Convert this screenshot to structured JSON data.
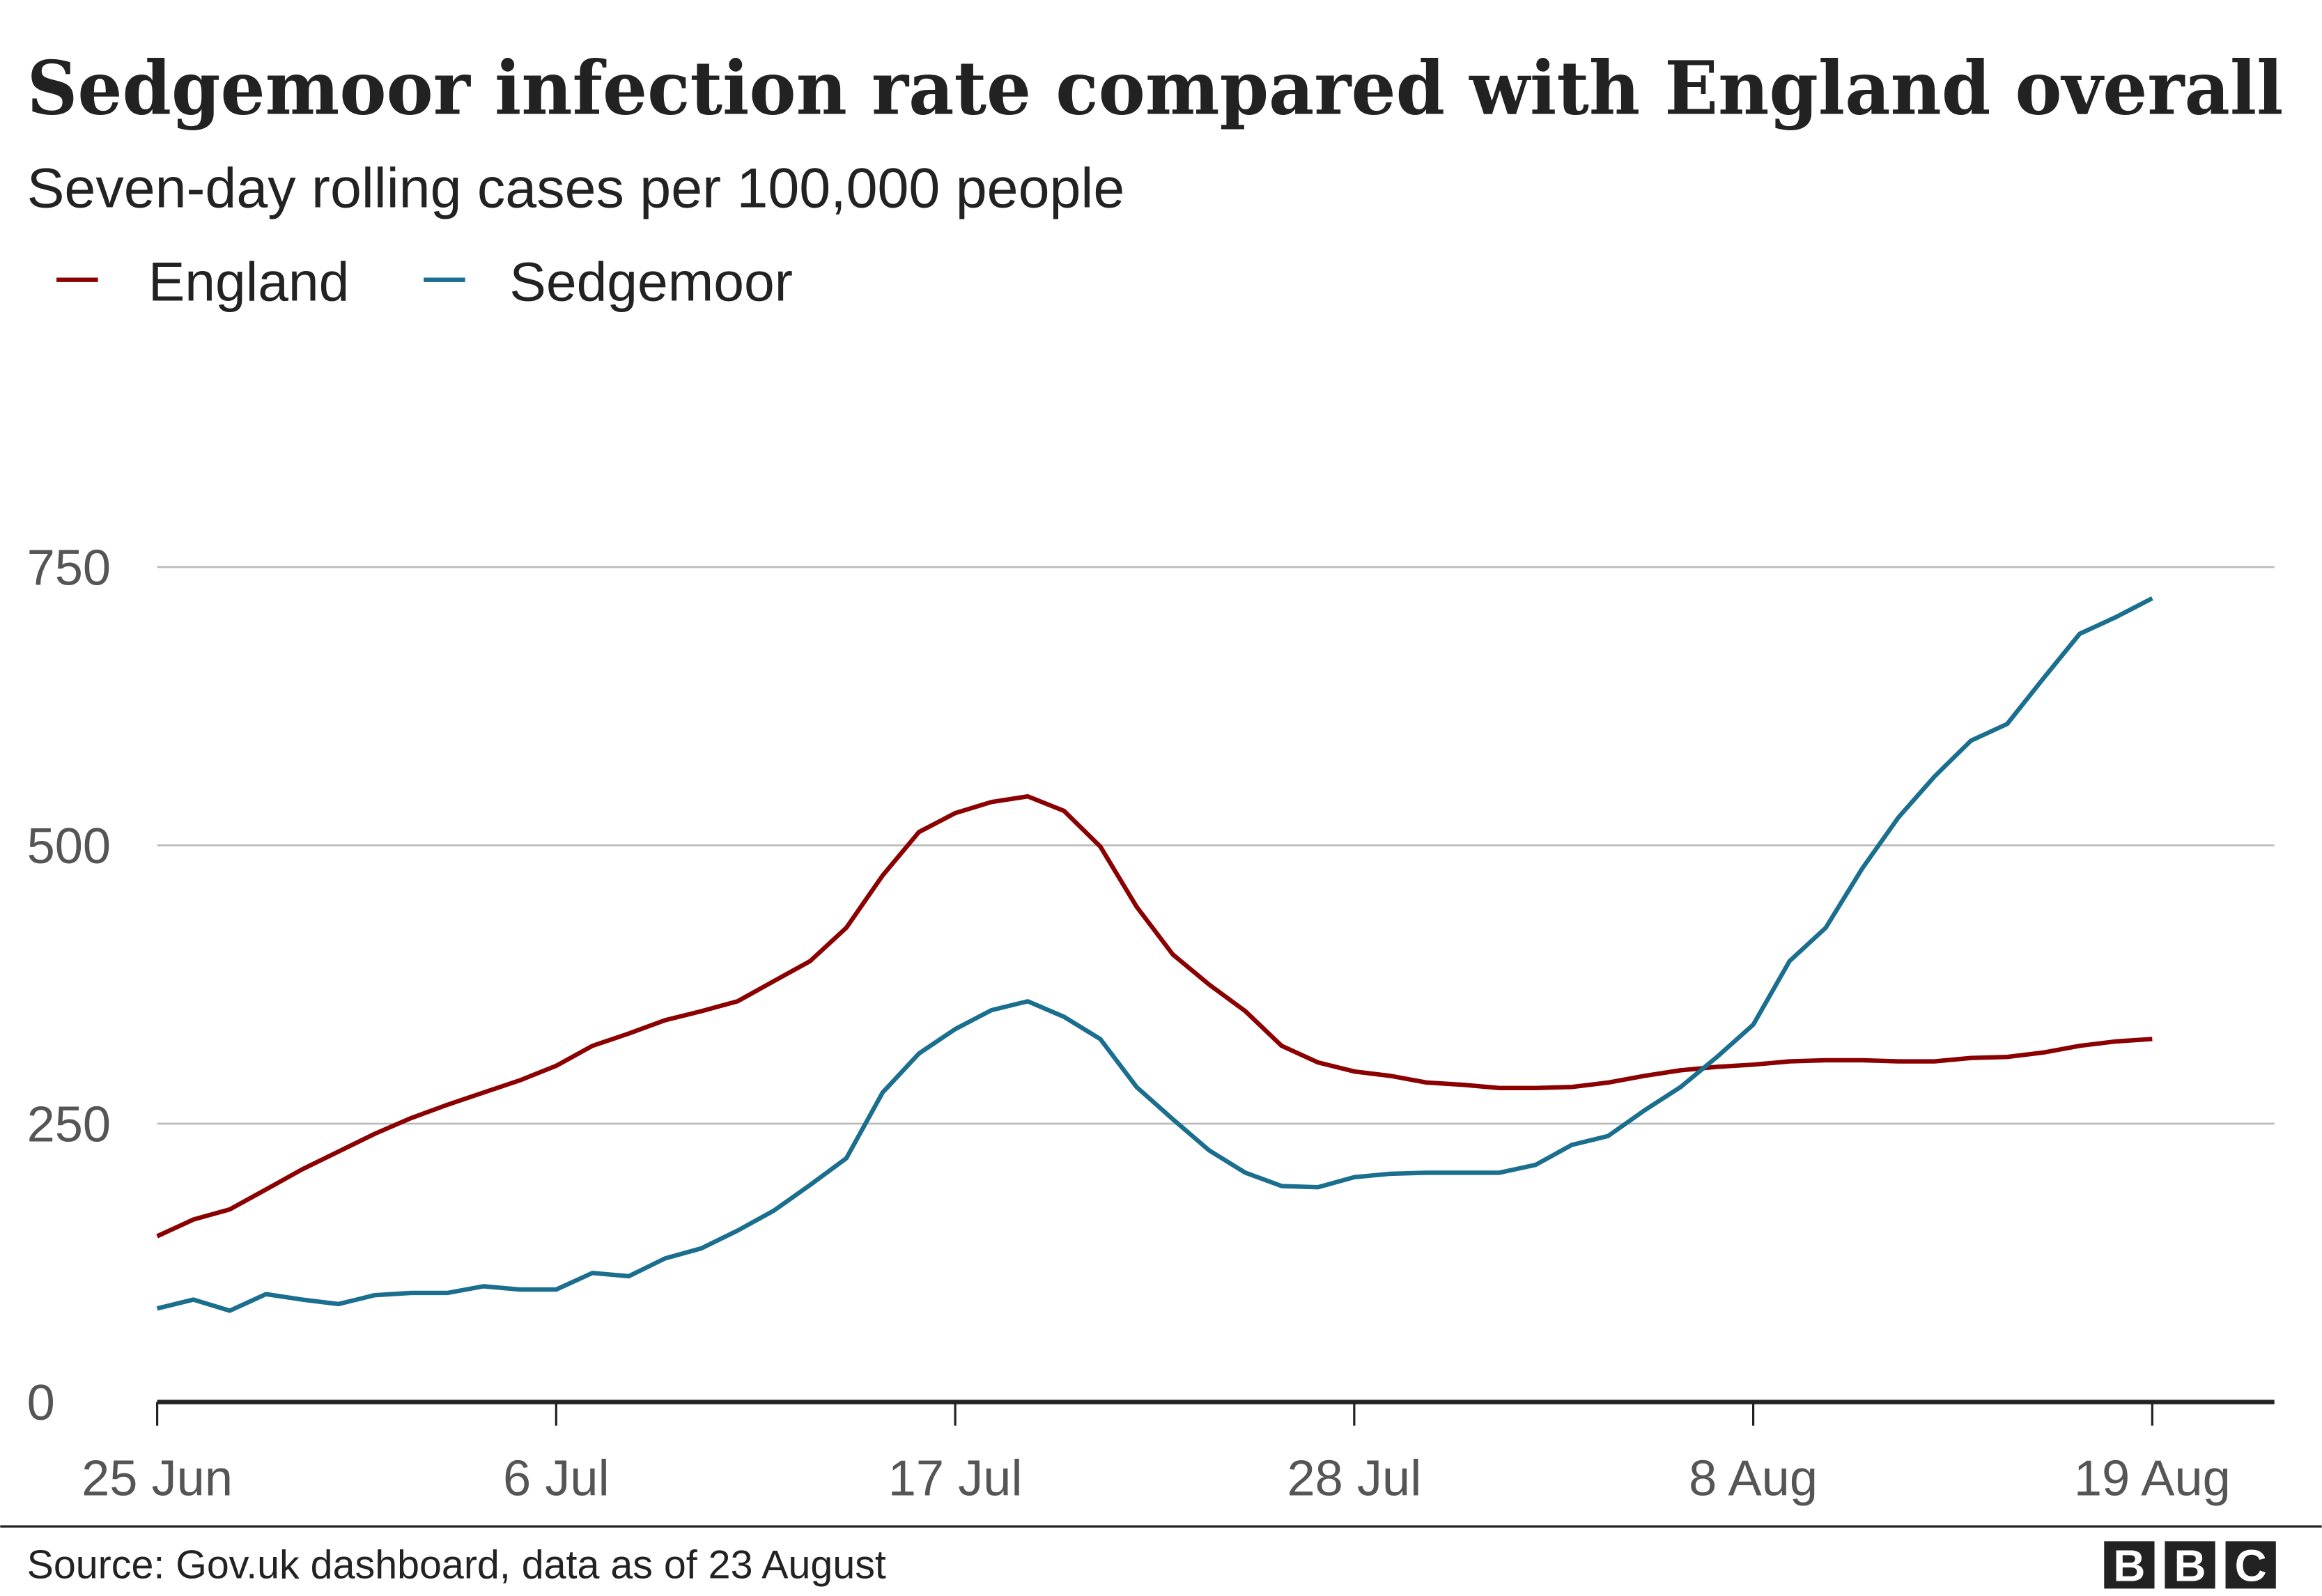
{
  "chart_data": {
    "type": "line",
    "title": "Sedgemoor infection rate compared with England overall",
    "subtitle": "Seven-day rolling cases per 100,000 people",
    "x_start": "2021-06-25",
    "x_end": "2021-08-19",
    "x_interval": "daily",
    "x_ticks": [
      "25 Jun",
      "6 Jul",
      "17 Jul",
      "28 Jul",
      "8 Aug",
      "19 Aug"
    ],
    "y_ticks": [
      "0",
      "250",
      "500",
      "750"
    ],
    "ylim": [
      0,
      800
    ],
    "grid": "horizontal",
    "legend_position": "top-left",
    "series": [
      {
        "name": "England",
        "color": "#8b0000",
        "values": [
          149,
          164,
          173,
          191,
          209,
          225,
          241,
          255,
          267,
          278,
          289,
          302,
          320,
          331,
          343,
          351,
          360,
          378,
          396,
          426,
          473,
          512,
          529,
          539,
          544,
          531,
          499,
          445,
          402,
          375,
          351,
          320,
          305,
          297,
          293,
          287,
          285,
          282,
          282,
          283,
          287,
          293,
          298,
          301,
          303,
          306,
          307,
          307,
          306,
          306,
          309,
          310,
          314,
          320,
          324,
          326
        ]
      },
      {
        "name": "Sedgemoor",
        "color": "#1a6e8e",
        "values": [
          84,
          92,
          82,
          97,
          92,
          88,
          96,
          98,
          98,
          104,
          101,
          101,
          116,
          113,
          129,
          138,
          154,
          172,
          195,
          219,
          278,
          313,
          335,
          352,
          360,
          346,
          326,
          283,
          254,
          226,
          206,
          194,
          193,
          202,
          205,
          206,
          206,
          206,
          213,
          231,
          239,
          262,
          283,
          310,
          339,
          396,
          426,
          479,
          525,
          562,
          594,
          609,
          650,
          690,
          705,
          722
        ]
      }
    ]
  },
  "source": "Source: Gov.uk dashboard, data as of 23 August",
  "logo": "BBC"
}
